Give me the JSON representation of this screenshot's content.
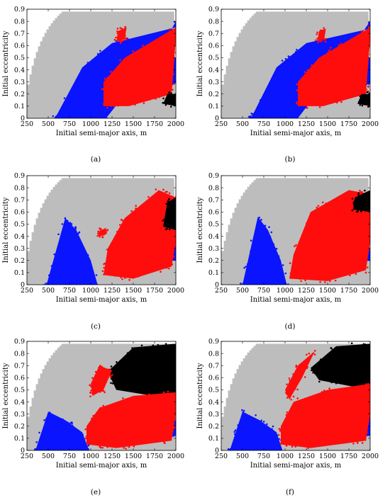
{
  "figure": {
    "panel_labels": [
      "(a)",
      "(b)",
      "(c)",
      "(d)",
      "(e)",
      "(f)"
    ]
  },
  "axes": {
    "xlabel": "Initial semi-major axis, m",
    "ylabel": "Initial eccentricity",
    "xticks": [
      "250",
      "500",
      "750",
      "1000",
      "1250",
      "1500",
      "1750",
      "2000"
    ],
    "yticks": [
      "0",
      "0.1",
      "0.2",
      "0.3",
      "0.4",
      "0.5",
      "0.6",
      "0.7",
      "0.8",
      "0.9"
    ]
  },
  "colors": {
    "gray": "#bdbdbd",
    "blue": "#0a14ff",
    "red": "#ff0d0d",
    "black": "#000000"
  },
  "chart_data": [
    {
      "type": "scatter",
      "panel": "(a)",
      "xlabel": "Initial semi-major axis, m",
      "ylabel": "Initial eccentricity",
      "xlim": [
        250,
        2000
      ],
      "ylim": [
        0,
        0.9
      ],
      "series": [
        {
          "color": "#0a14ff",
          "regions": [
            {
              "x": [
                580,
                1180,
                1800,
                2000,
                2000,
                1250,
                900,
                580
              ],
              "y": [
                0,
                0,
                0.55,
                0.8,
                0.75,
                0.62,
                0.42,
                0
              ]
            },
            {
              "x": [
                1600,
                1850,
                2000,
                2000,
                1700
              ],
              "y": [
                0.3,
                0.2,
                0.3,
                0.5,
                0.45
              ]
            }
          ]
        },
        {
          "color": "#ff0d0d",
          "regions": [
            {
              "x": [
                1150,
                1450,
                1950,
                2000,
                2000,
                1400,
                1150
              ],
              "y": [
                0.1,
                0.1,
                0.2,
                0.65,
                0.75,
                0.5,
                0.3
              ]
            },
            {
              "x": [
                1320,
                1420,
                1400,
                1300
              ],
              "y": [
                0.72,
                0.75,
                0.65,
                0.63
              ]
            }
          ]
        },
        {
          "color": "#000000",
          "regions": [
            {
              "x": [
                1850,
                2000,
                2000,
                1900
              ],
              "y": [
                0.12,
                0.1,
                0.2,
                0.2
              ]
            }
          ]
        }
      ]
    },
    {
      "type": "scatter",
      "panel": "(b)",
      "xlabel": "Initial semi-major axis, m",
      "ylabel": "Initial eccentricity",
      "xlim": [
        250,
        2000
      ],
      "ylim": [
        0,
        0.9
      ],
      "series": [
        {
          "color": "#0a14ff",
          "regions": [
            {
              "x": [
                600,
                1150,
                1750,
                2000,
                2000,
                1250,
                900,
                600
              ],
              "y": [
                0,
                0,
                0.55,
                0.8,
                0.74,
                0.62,
                0.42,
                0
              ]
            },
            {
              "x": [
                1600,
                1850,
                2000,
                2000,
                1700
              ],
              "y": [
                0.3,
                0.2,
                0.3,
                0.5,
                0.45
              ]
            }
          ]
        },
        {
          "color": "#ff0d0d",
          "regions": [
            {
              "x": [
                1150,
                1450,
                1950,
                2000,
                2000,
                1400,
                1150
              ],
              "y": [
                0.1,
                0.1,
                0.2,
                0.65,
                0.75,
                0.5,
                0.3
              ]
            },
            {
              "x": [
                1400,
                1480,
                1460,
                1380
              ],
              "y": [
                0.72,
                0.74,
                0.65,
                0.64
              ]
            }
          ]
        },
        {
          "color": "#000000",
          "regions": [
            {
              "x": [
                1850,
                2000,
                2000,
                1900
              ],
              "y": [
                0.12,
                0.1,
                0.2,
                0.2
              ]
            }
          ]
        }
      ]
    },
    {
      "type": "scatter",
      "panel": "(c)",
      "xlabel": "Initial semi-major axis, m",
      "ylabel": "Initial eccentricity",
      "xlim": [
        250,
        2000
      ],
      "ylim": [
        0,
        0.9
      ],
      "series": [
        {
          "color": "#0a14ff",
          "regions": [
            {
              "x": [
                480,
                1080,
                1000,
                830,
                700,
                480
              ],
              "y": [
                0,
                0,
                0.2,
                0.45,
                0.55,
                0
              ]
            },
            {
              "x": [
                1400,
                2000,
                2000,
                1400
              ],
              "y": [
                0.18,
                0.2,
                0.33,
                0.32
              ]
            }
          ]
        },
        {
          "color": "#ff0d0d",
          "regions": [
            {
              "x": [
                1150,
                1500,
                1950,
                2000,
                2000,
                1800,
                1400,
                1200
              ],
              "y": [
                0.08,
                0.05,
                0.15,
                0.35,
                0.72,
                0.78,
                0.55,
                0.3
              ]
            },
            {
              "x": [
                1100,
                1180,
                1170,
                1090
              ],
              "y": [
                0.44,
                0.47,
                0.41,
                0.4
              ]
            }
          ]
        },
        {
          "color": "#000000",
          "regions": [
            {
              "x": [
                1850,
                2000,
                2000,
                1900
              ],
              "y": [
                0.48,
                0.45,
                0.72,
                0.68
              ]
            }
          ]
        }
      ]
    },
    {
      "type": "scatter",
      "panel": "(d)",
      "xlabel": "Initial semi-major axis, m",
      "ylabel": "Initial eccentricity",
      "xlim": [
        250,
        2000
      ],
      "ylim": [
        0,
        0.9
      ],
      "series": [
        {
          "color": "#0a14ff",
          "regions": [
            {
              "x": [
                500,
                1020,
                950,
                800,
                680,
                500
              ],
              "y": [
                0,
                0,
                0.2,
                0.45,
                0.56,
                0
              ]
            },
            {
              "x": [
                1300,
                2000,
                2000,
                1350
              ],
              "y": [
                0.15,
                0.2,
                0.3,
                0.32
              ]
            }
          ]
        },
        {
          "color": "#ff0d0d",
          "regions": [
            {
              "x": [
                1050,
                1500,
                1950,
                2000,
                2000,
                1750,
                1300,
                1100
              ],
              "y": [
                0.05,
                0.03,
                0.12,
                0.35,
                0.75,
                0.78,
                0.6,
                0.25
              ]
            }
          ]
        },
        {
          "color": "#000000",
          "regions": [
            {
              "x": [
                1800,
                2000,
                2000,
                1820
              ],
              "y": [
                0.62,
                0.6,
                0.78,
                0.72
              ]
            }
          ]
        }
      ]
    },
    {
      "type": "scatter",
      "panel": "(e)",
      "xlabel": "Initial semi-major axis, m",
      "ylabel": "Initial eccentricity",
      "xlim": [
        250,
        2000
      ],
      "ylim": [
        0,
        0.9
      ],
      "series": [
        {
          "color": "#000000",
          "regions": [
            {
              "x": [
                1200,
                1500,
                2000,
                2000,
                1300
              ],
              "y": [
                0.65,
                0.85,
                0.88,
                0.42,
                0.5
              ]
            }
          ]
        },
        {
          "color": "#0a14ff",
          "regions": [
            {
              "x": [
                350,
                980,
                900,
                700,
                500,
                350
              ],
              "y": [
                0,
                0,
                0.15,
                0.25,
                0.32,
                0
              ]
            },
            {
              "x": [
                1250,
                2000,
                2000,
                1280
              ],
              "y": [
                0.08,
                0.12,
                0.25,
                0.26
              ]
            }
          ]
        },
        {
          "color": "#ff0d0d",
          "regions": [
            {
              "x": [
                950,
                1300,
                1950,
                2000,
                2000,
                1500,
                1100,
                950
              ],
              "y": [
                0.05,
                0.02,
                0.08,
                0.3,
                0.48,
                0.45,
                0.35,
                0.2
              ]
            },
            {
              "x": [
                1000,
                1100,
                1250,
                1150,
                1020
              ],
              "y": [
                0.55,
                0.7,
                0.66,
                0.5,
                0.45
              ]
            }
          ]
        }
      ]
    },
    {
      "type": "scatter",
      "panel": "(f)",
      "xlabel": "Initial semi-major axis, m",
      "ylabel": "Initial eccentricity",
      "xlim": [
        250,
        2000
      ],
      "ylim": [
        0,
        0.9
      ],
      "series": [
        {
          "color": "#000000",
          "regions": [
            {
              "x": [
                1300,
                1600,
                2000,
                2000,
                1400
              ],
              "y": [
                0.68,
                0.86,
                0.88,
                0.5,
                0.58
              ]
            }
          ]
        },
        {
          "color": "#0a14ff",
          "regions": [
            {
              "x": [
                350,
                970,
                900,
                700,
                500,
                350
              ],
              "y": [
                0,
                0,
                0.15,
                0.25,
                0.32,
                0
              ]
            },
            {
              "x": [
                1300,
                2000,
                2000,
                1320
              ],
              "y": [
                0.1,
                0.12,
                0.28,
                0.28
              ]
            }
          ]
        },
        {
          "color": "#ff0d0d",
          "regions": [
            {
              "x": [
                950,
                1300,
                1950,
                2000,
                2000,
                1500,
                1100,
                950
              ],
              "y": [
                0.05,
                0.02,
                0.08,
                0.3,
                0.55,
                0.5,
                0.4,
                0.2
              ]
            },
            {
              "x": [
                1000,
                1150,
                1350,
                1200,
                1050
              ],
              "y": [
                0.5,
                0.7,
                0.82,
                0.6,
                0.42
              ]
            }
          ]
        }
      ]
    }
  ]
}
